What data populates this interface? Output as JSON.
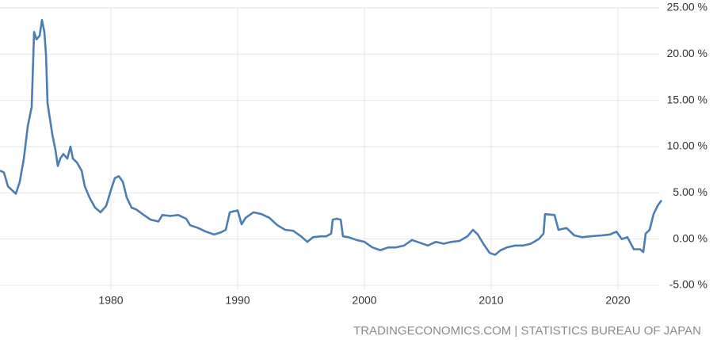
{
  "chart_data": {
    "type": "line",
    "source": "TRADINGECONOMICS.COM | STATISTICS BUREAU OF JAPAN",
    "x": [
      1971.25,
      1971.56,
      1971.88,
      1972.19,
      1972.5,
      1972.81,
      1973.13,
      1973.44,
      1973.75,
      1973.94,
      1974.13,
      1974.38,
      1974.56,
      1974.75,
      1974.88,
      1975.0,
      1975.19,
      1975.38,
      1975.63,
      1975.81,
      1976.0,
      1976.25,
      1976.56,
      1976.81,
      1977.0,
      1977.31,
      1977.69,
      1977.94,
      1978.31,
      1978.75,
      1979.19,
      1979.63,
      1980.0,
      1980.31,
      1980.63,
      1980.94,
      1981.25,
      1981.63,
      1982.0,
      1982.5,
      1983.13,
      1983.75,
      1984.06,
      1984.69,
      1985.31,
      1985.94,
      1986.25,
      1986.88,
      1987.5,
      1988.13,
      1988.63,
      1989.06,
      1989.38,
      1989.69,
      1990.0,
      1990.31,
      1990.63,
      1991.25,
      1991.88,
      1992.5,
      1993.13,
      1993.75,
      1994.38,
      1995.0,
      1995.5,
      1995.94,
      1996.56,
      1997.0,
      1997.38,
      1997.5,
      1997.81,
      1998.13,
      1998.31,
      1998.75,
      1999.38,
      2000.0,
      2000.63,
      2001.25,
      2001.88,
      2002.5,
      2003.13,
      2003.75,
      2004.38,
      2005.0,
      2005.63,
      2006.25,
      2006.88,
      2007.5,
      2008.13,
      2008.56,
      2008.94,
      2009.38,
      2009.88,
      2010.31,
      2010.75,
      2011.25,
      2011.88,
      2012.5,
      2013.13,
      2013.75,
      2014.13,
      2014.25,
      2015.0,
      2015.31,
      2015.94,
      2016.56,
      2017.19,
      2017.81,
      2018.75,
      2019.38,
      2019.88,
      2020.31,
      2020.75,
      2021.25,
      2021.75,
      2022.0,
      2022.19,
      2022.5,
      2022.81,
      2023.13,
      2023.44
    ],
    "series": [
      {
        "color": "#4a7eb5",
        "values": [
          7.4,
          7.2,
          5.7,
          5.3,
          4.9,
          6.2,
          8.7,
          12.2,
          14.3,
          22.4,
          21.6,
          22.0,
          23.7,
          22.4,
          19.9,
          14.7,
          13.0,
          11.3,
          9.6,
          7.9,
          8.7,
          9.2,
          8.7,
          10.0,
          8.7,
          8.3,
          7.4,
          5.7,
          4.5,
          3.4,
          2.9,
          3.6,
          5.3,
          6.6,
          6.8,
          6.2,
          4.5,
          3.4,
          3.2,
          2.7,
          2.1,
          1.9,
          2.6,
          2.5,
          2.6,
          2.2,
          1.5,
          1.2,
          0.8,
          0.5,
          0.7,
          1.0,
          2.9,
          3.0,
          3.1,
          1.6,
          2.3,
          2.9,
          2.7,
          2.3,
          1.5,
          1.0,
          0.9,
          0.3,
          -0.3,
          0.2,
          0.3,
          0.3,
          0.6,
          2.1,
          2.2,
          2.1,
          0.3,
          0.2,
          -0.1,
          -0.3,
          -0.9,
          -1.2,
          -0.9,
          -0.9,
          -0.7,
          -0.1,
          -0.4,
          -0.7,
          -0.3,
          -0.5,
          -0.3,
          -0.2,
          0.3,
          1.0,
          0.5,
          -0.5,
          -1.5,
          -1.7,
          -1.2,
          -0.9,
          -0.7,
          -0.7,
          -0.5,
          0.0,
          0.6,
          2.7,
          2.6,
          1.0,
          1.2,
          0.4,
          0.2,
          0.3,
          0.4,
          0.5,
          0.8,
          0.0,
          0.2,
          -1.1,
          -1.1,
          -1.4,
          0.6,
          1.0,
          2.7,
          3.6,
          4.2
        ]
      }
    ],
    "xlim": [
      1971.25,
      2023.6
    ],
    "xticks": [
      1980,
      1990,
      2000,
      2010,
      2020
    ],
    "ylim": [
      -5,
      25
    ],
    "yticks": [
      {
        "value": 25,
        "label": "25.00 %"
      },
      {
        "value": 20,
        "label": "20.00 %"
      },
      {
        "value": 15,
        "label": "15.00 %"
      },
      {
        "value": 10,
        "label": "10.00 %"
      },
      {
        "value": 5,
        "label": "5.00 %"
      },
      {
        "value": 0,
        "label": "0.00 %"
      },
      {
        "value": -5,
        "label": "-5.00 %"
      }
    ],
    "grid": true
  }
}
